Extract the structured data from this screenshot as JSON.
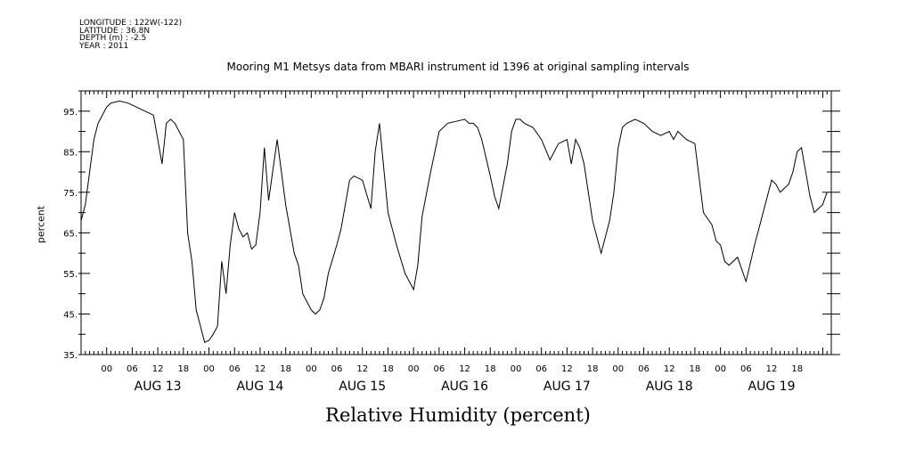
{
  "metadata": {
    "longitude": "LONGITUDE : 122W(-122)",
    "latitude": "LATITUDE : 36.8N",
    "depth": "DEPTH (m) : -2.5",
    "year": "YEAR : 2011"
  },
  "chart_data": {
    "type": "line",
    "title": "Mooring M1 Metsys data from MBARI instrument id 1396 at original sampling intervals",
    "xlabel": "Relative Humidity (percent)",
    "ylabel": "percent",
    "ylim": [
      35,
      100
    ],
    "yticks": [
      "35.",
      "45.",
      "55.",
      "65.",
      "75.",
      "85.",
      "95."
    ],
    "x_unit": "hours since AUG 13 00",
    "xlim": [
      -6,
      170
    ],
    "hour_ticks": [
      "00",
      "06",
      "12",
      "18"
    ],
    "day_labels": [
      "AUG 13",
      "AUG 14",
      "AUG 15",
      "AUG 16",
      "AUG 17",
      "AUG 18",
      "AUG 19"
    ],
    "grid": false,
    "legend": "none",
    "series": [
      {
        "x": [
          -6,
          -5,
          -4,
          -3,
          -2,
          0,
          1,
          3,
          5,
          7,
          9,
          11,
          13,
          14,
          15,
          16,
          18,
          19,
          20,
          21,
          22,
          23,
          24,
          25,
          26,
          27,
          28,
          29,
          30,
          31,
          32,
          33,
          34,
          35,
          36,
          37,
          38,
          40,
          42,
          43,
          44,
          45,
          46,
          48,
          49,
          50,
          51,
          52,
          54,
          55,
          56,
          57,
          58,
          60,
          62,
          63,
          64,
          66,
          68,
          70,
          72,
          73,
          74,
          76,
          78,
          80,
          82,
          84,
          85,
          86,
          87,
          88,
          90,
          91,
          92,
          94,
          95,
          96,
          97,
          98,
          100,
          102,
          104,
          106,
          108,
          109,
          110,
          111,
          112,
          114,
          116,
          118,
          119,
          120,
          121,
          122,
          124,
          126,
          128,
          130,
          132,
          133,
          134,
          136,
          138,
          140,
          142,
          143,
          144,
          145,
          146,
          148,
          150,
          152,
          154,
          156,
          157,
          158,
          159,
          160,
          161,
          162,
          163,
          164,
          165,
          166,
          167,
          168,
          169
        ],
        "y": [
          68,
          72,
          80,
          88,
          92,
          96,
          97,
          97.5,
          97,
          96,
          95,
          94,
          82,
          92,
          93,
          92,
          88,
          65,
          58,
          46,
          42,
          38,
          38.5,
          40,
          42,
          58,
          50,
          62,
          70,
          66,
          64,
          65,
          61,
          62,
          70,
          86,
          73,
          88,
          72,
          66,
          60,
          57,
          50,
          46,
          45,
          46,
          49,
          55,
          62,
          66,
          72,
          78,
          79,
          78,
          71,
          85,
          92,
          70,
          62,
          55,
          51,
          57,
          69,
          80,
          90,
          92,
          92.5,
          93,
          92,
          92,
          91,
          88,
          79,
          74,
          71,
          82,
          90,
          93,
          93,
          92,
          91,
          88,
          83,
          87,
          88,
          82,
          88,
          86,
          82,
          68,
          60,
          68,
          75,
          86,
          91,
          92,
          93,
          92,
          90,
          89,
          90,
          88,
          90,
          88,
          87,
          70,
          67,
          63,
          62,
          58,
          57,
          59,
          53,
          62,
          70,
          78,
          77,
          75,
          76,
          77,
          80,
          85,
          86,
          80,
          74,
          70,
          71,
          72,
          75
        ]
      }
    ]
  }
}
